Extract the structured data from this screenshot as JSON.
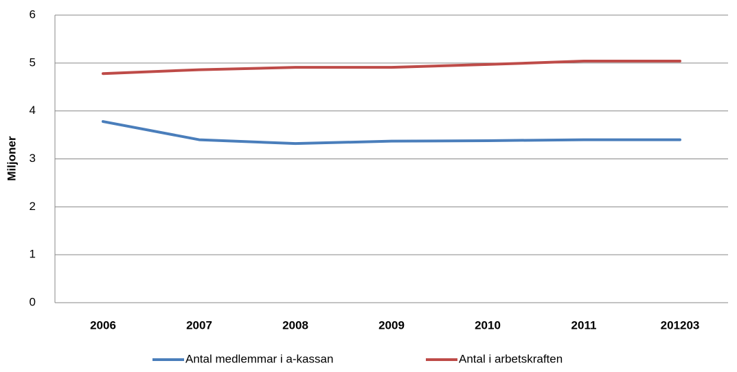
{
  "chart_data": {
    "type": "line",
    "y_label": "Miljoner",
    "categories": [
      "2006",
      "2007",
      "2008",
      "2009",
      "2010",
      "2011",
      "201203"
    ],
    "series": [
      {
        "name": "Antal medlemmar i a-kassan",
        "color": "#4a7ebb",
        "values": [
          3.78,
          3.4,
          3.32,
          3.37,
          3.38,
          3.4,
          3.4
        ]
      },
      {
        "name": "Antal i arbetskraften",
        "color": "#be4b48",
        "values": [
          4.78,
          4.86,
          4.91,
          4.91,
          4.97,
          5.04,
          5.04
        ]
      }
    ],
    "ylim": [
      0,
      6
    ],
    "yticks": [
      0,
      1,
      2,
      3,
      4,
      5,
      6
    ],
    "grid": true,
    "legend": "bottom"
  }
}
